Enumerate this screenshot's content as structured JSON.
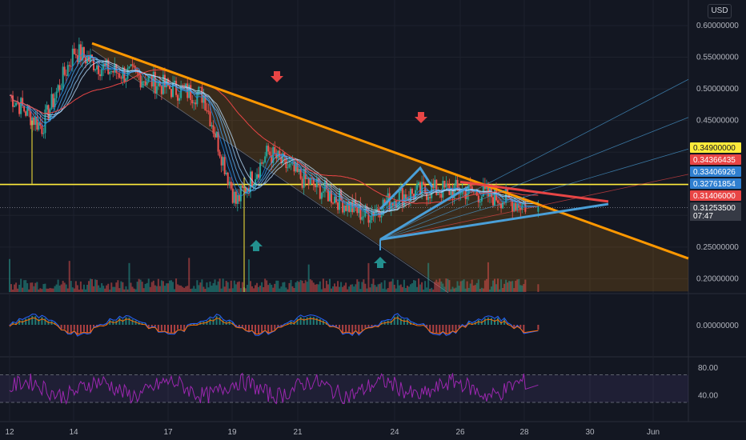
{
  "currency": "USD",
  "colors": {
    "background": "#131722",
    "trendline": "#ff9800",
    "fan": "#4a9fd8",
    "horizontal": "#ffeb3b",
    "resistance": "#e84545",
    "arrow_down": "#e84545",
    "arrow_up": "#23908f",
    "rsi": "#9c27b0"
  },
  "chart_data": [
    {
      "type": "line",
      "pane": "price",
      "symbol_note": "candlestick price with moving-average ribbon",
      "x": [
        "12",
        "13",
        "14",
        "15",
        "16",
        "17",
        "18",
        "19",
        "20",
        "21",
        "22",
        "23",
        "24",
        "25",
        "26",
        "27",
        "28"
      ],
      "values": [
        0.49,
        0.44,
        0.56,
        0.53,
        0.52,
        0.5,
        0.49,
        0.32,
        0.4,
        0.36,
        0.33,
        0.3,
        0.33,
        0.34,
        0.34,
        0.33,
        0.315
      ],
      "ylim": [
        0.18,
        0.62
      ],
      "y_ticks": [
        "0.60000000",
        "0.55000000",
        "0.50000000",
        "0.45000000",
        "0.25000000",
        "0.20000000"
      ],
      "x_ticks": [
        "12",
        "14",
        "17",
        "19",
        "21",
        "24",
        "26",
        "28",
        "30",
        "Jun"
      ],
      "price_labels": [
        {
          "value": "0.34900000",
          "color": "#ffeb3b",
          "text_color": "#131722"
        },
        {
          "value": "0.34366435",
          "color": "#e84545",
          "text_color": "#ffffff"
        },
        {
          "value": "0.33406926",
          "color": "#2f7fd0",
          "text_color": "#ffffff"
        },
        {
          "value": "0.32761854",
          "color": "#2f7fd0",
          "text_color": "#ffffff"
        },
        {
          "value": "0.31406000",
          "color": "#e84545",
          "text_color": "#ffffff"
        },
        {
          "value": "0.31253500",
          "color": "#363a45",
          "text_color": "#ffffff"
        }
      ],
      "countdown": "07:47",
      "horizontal_level": 0.349
    },
    {
      "type": "line",
      "pane": "macd",
      "ylim": [
        -0.01,
        0.01
      ],
      "y_ticks": [
        "0.00000000"
      ]
    },
    {
      "type": "line",
      "pane": "rsi",
      "ylim": [
        20,
        90
      ],
      "y_ticks": [
        "80.00",
        "40.00"
      ],
      "bands": [
        70,
        30
      ]
    }
  ]
}
